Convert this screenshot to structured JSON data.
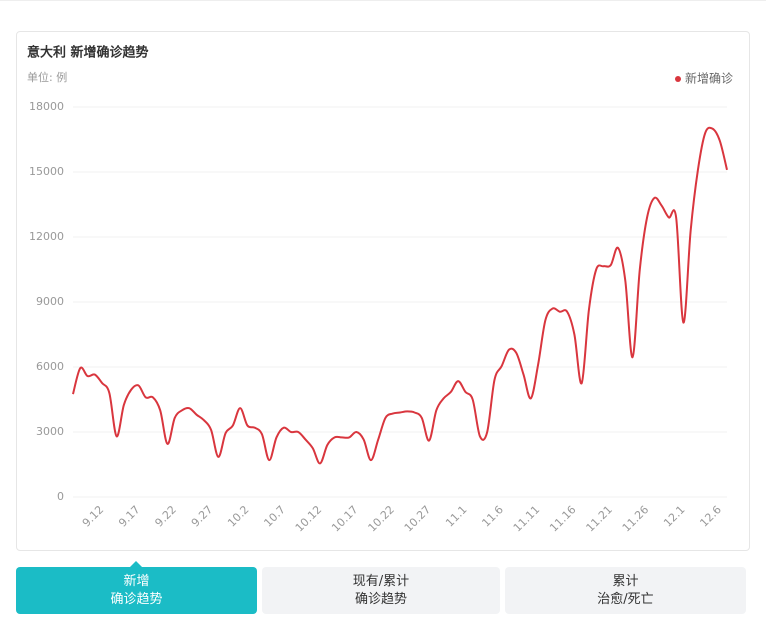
{
  "chart_data": {
    "type": "line",
    "title": "意大利 新增确诊趋势",
    "unit_label": "单位: 例",
    "categories": [
      null,
      null,
      null,
      null,
      "9.12",
      null,
      null,
      null,
      null,
      "9.17",
      null,
      null,
      null,
      null,
      "9.22",
      null,
      null,
      null,
      null,
      "9.27",
      null,
      null,
      null,
      null,
      "10.2",
      null,
      null,
      null,
      null,
      "10.7",
      null,
      null,
      null,
      null,
      "10.12",
      null,
      null,
      null,
      null,
      "10.17",
      null,
      null,
      null,
      null,
      "10.22",
      null,
      null,
      null,
      null,
      "10.27",
      null,
      null,
      null,
      null,
      "11.1",
      null,
      null,
      null,
      null,
      "11.6",
      null,
      null,
      null,
      null,
      "11.11",
      null,
      null,
      null,
      null,
      "11.16",
      null,
      null,
      null,
      null,
      "11.21",
      null,
      null,
      null,
      null,
      "11.26",
      null,
      null,
      null,
      null,
      "12.1",
      null,
      null,
      null,
      null,
      "12.6",
      null
    ],
    "series": [
      {
        "name": "新增确诊",
        "color": "#d9363e",
        "values": [
          4750,
          5950,
          5580,
          5650,
          5260,
          4800,
          2800,
          4250,
          4950,
          5150,
          4600,
          4600,
          4000,
          2450,
          3650,
          4000,
          4100,
          3800,
          3550,
          3100,
          1850,
          2950,
          3300,
          4100,
          3300,
          3200,
          2900,
          1700,
          2750,
          3200,
          3000,
          3000,
          2650,
          2250,
          1550,
          2400,
          2750,
          2750,
          2750,
          3000,
          2650,
          1700,
          2650,
          3650,
          3850,
          3900,
          3950,
          3900,
          3650,
          2600,
          4000,
          4550,
          4850,
          5350,
          4850,
          4500,
          2800,
          3000,
          5400,
          6050,
          6800,
          6650,
          5650,
          4550,
          6100,
          8150,
          8700,
          8550,
          8550,
          7500,
          5250,
          8650,
          10500,
          10650,
          10700,
          11500,
          10000,
          6450,
          10500,
          12900,
          13800,
          13450,
          12900,
          12900,
          8050,
          12300,
          15100,
          16800,
          17000,
          16450,
          15100
        ]
      }
    ],
    "ylim": [
      0,
      18000
    ],
    "yticks": [
      0,
      3000,
      6000,
      9000,
      12000,
      15000,
      18000
    ],
    "grid": true,
    "legend": "top-right"
  },
  "tabs": [
    {
      "lines": [
        "新增",
        "确诊趋势"
      ],
      "active": true
    },
    {
      "lines": [
        "现有/累计",
        "确诊趋势"
      ],
      "active": false
    },
    {
      "lines": [
        "累计",
        "治愈/死亡"
      ],
      "active": false
    }
  ]
}
